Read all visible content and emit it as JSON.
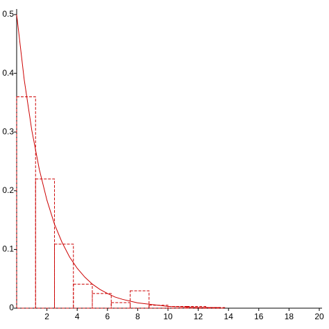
{
  "chart_data": {
    "type": "histogram",
    "color": "#cc0000",
    "bins": [
      0,
      1.25,
      2.5,
      3.75,
      5,
      6.25,
      7.5,
      8.75,
      10,
      11.25,
      12.5,
      13.75
    ],
    "values": [
      0.36,
      0.22,
      0.109,
      0.041,
      0.025,
      0.0095,
      0.0295,
      0.005,
      0.003,
      0.003,
      0.001
    ],
    "curve": {
      "x": [
        0,
        0.5,
        1,
        1.5,
        2,
        2.5,
        3,
        3.5,
        4,
        4.5,
        5,
        5.5,
        6,
        6.5,
        7,
        7.5,
        8,
        9,
        10,
        11,
        12,
        13.5
      ],
      "y": [
        0.5,
        0.389,
        0.303,
        0.236,
        0.184,
        0.143,
        0.112,
        0.087,
        0.068,
        0.053,
        0.041,
        0.032,
        0.025,
        0.019,
        0.015,
        0.012,
        0.009,
        0.006,
        0.003,
        0.002,
        0.001,
        0.001
      ]
    },
    "xlim": [
      0,
      20
    ],
    "ylim": [
      0,
      0.5
    ],
    "xticks": [
      2,
      4,
      6,
      8,
      10,
      12,
      14,
      16,
      18,
      20
    ],
    "yticks": [
      0,
      0.1,
      0.2,
      0.3,
      0.4,
      0.5
    ]
  }
}
